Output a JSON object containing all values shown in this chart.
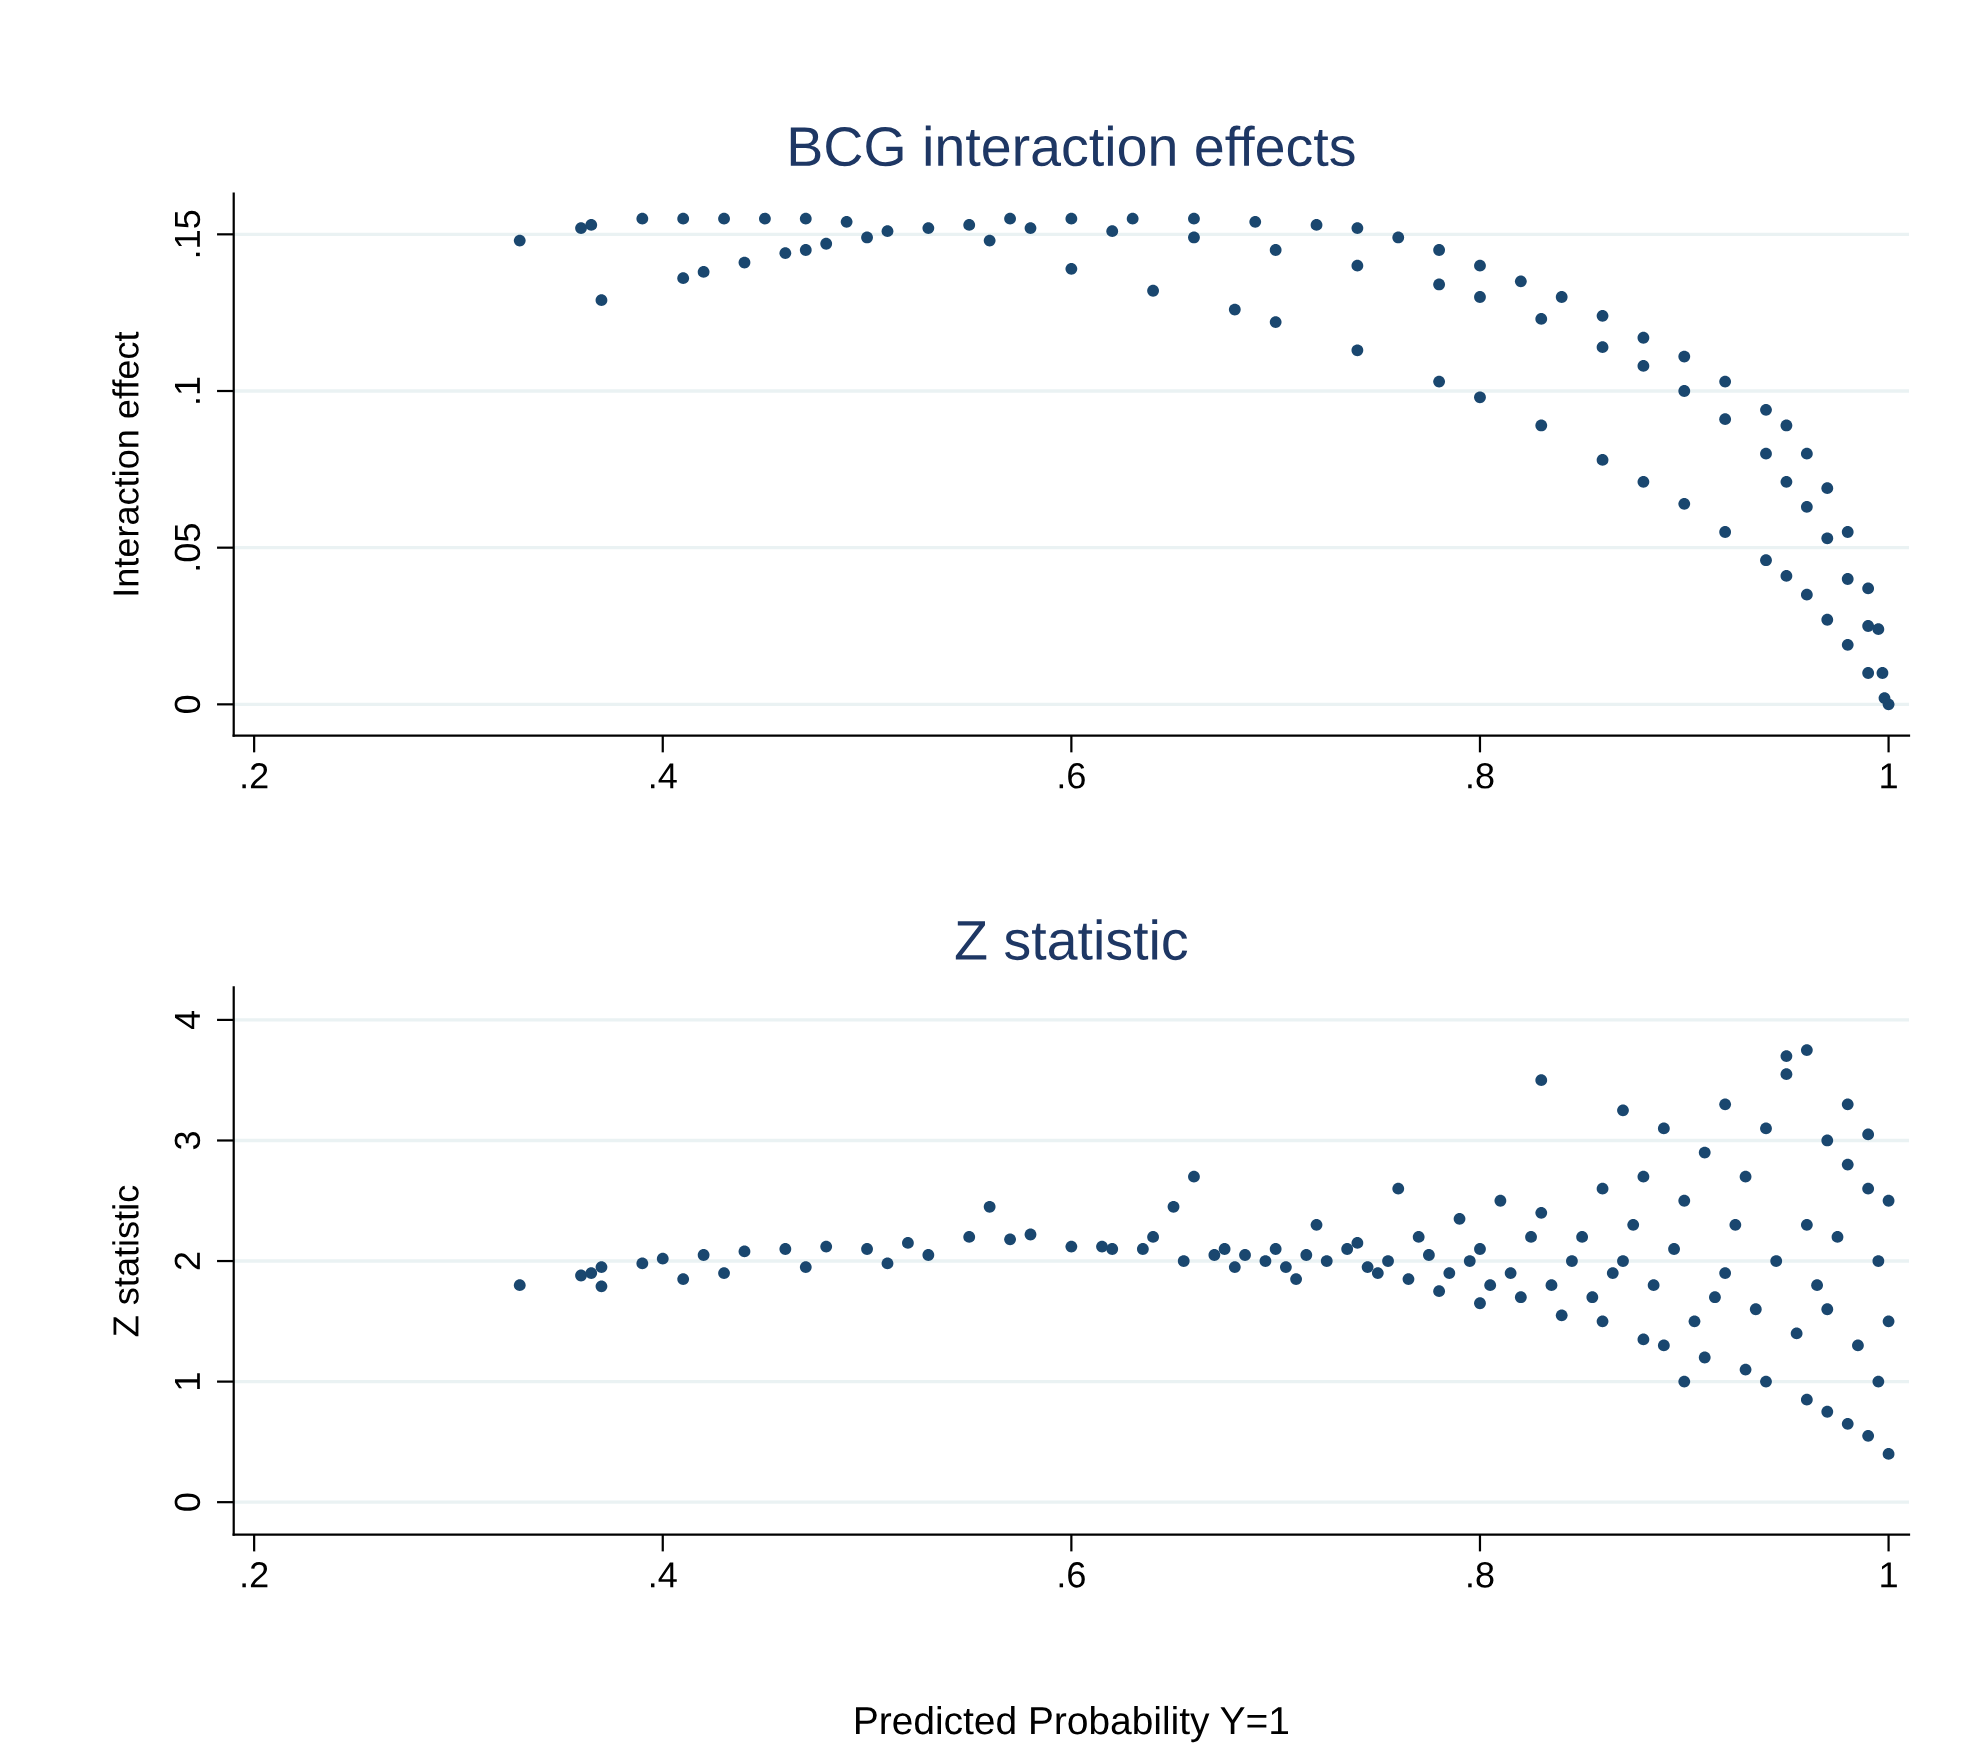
{
  "chart_data": [
    {
      "type": "scatter",
      "title": "BCG interaction effects",
      "ylabel": "Interaction effect",
      "series": [
        {
          "color": "#1a476f",
          "x": [
            0.33,
            0.36,
            0.365,
            0.37,
            0.39,
            0.41,
            0.43,
            0.45,
            0.47,
            0.49,
            0.41,
            0.42,
            0.44,
            0.46,
            0.47,
            0.48,
            0.5,
            0.51,
            0.53,
            0.55,
            0.57,
            0.6,
            0.63,
            0.66,
            0.69,
            0.72,
            0.74,
            0.76,
            0.78,
            0.8,
            0.82,
            0.84,
            0.86,
            0.88,
            0.9,
            0.92,
            0.94,
            0.95,
            0.96,
            0.97,
            0.98,
            0.99,
            0.995,
            1.0,
            0.58,
            0.62,
            0.66,
            0.7,
            0.74,
            0.78,
            0.8,
            0.83,
            0.86,
            0.88,
            0.9,
            0.92,
            0.94,
            0.95,
            0.96,
            0.97,
            0.98,
            0.99,
            0.997,
            0.56,
            0.6,
            0.64,
            0.68,
            0.7,
            0.74,
            0.78,
            0.8,
            0.83,
            0.86,
            0.88,
            0.9,
            0.92,
            0.94,
            0.95,
            0.96,
            0.97,
            0.98,
            0.99,
            0.998
          ],
          "values": [
            0.148,
            0.152,
            0.153,
            0.129,
            0.155,
            0.155,
            0.155,
            0.155,
            0.155,
            0.154,
            0.136,
            0.138,
            0.141,
            0.144,
            0.145,
            0.147,
            0.149,
            0.151,
            0.152,
            0.153,
            0.155,
            0.155,
            0.155,
            0.155,
            0.154,
            0.153,
            0.152,
            0.149,
            0.145,
            0.14,
            0.135,
            0.13,
            0.124,
            0.117,
            0.111,
            0.103,
            0.094,
            0.089,
            0.08,
            0.069,
            0.055,
            0.037,
            0.024,
            0.0,
            0.152,
            0.151,
            0.149,
            0.145,
            0.14,
            0.134,
            0.13,
            0.123,
            0.114,
            0.108,
            0.1,
            0.091,
            0.08,
            0.071,
            0.063,
            0.053,
            0.04,
            0.025,
            0.01,
            0.148,
            0.139,
            0.132,
            0.126,
            0.122,
            0.113,
            0.103,
            0.098,
            0.089,
            0.078,
            0.071,
            0.064,
            0.055,
            0.046,
            0.041,
            0.035,
            0.027,
            0.019,
            0.01,
            0.002
          ]
        }
      ],
      "xlim": [
        0.19,
        1.01
      ],
      "xticks": [
        {
          "value": 0.2,
          "label": ".2"
        },
        {
          "value": 0.4,
          "label": ".4"
        },
        {
          "value": 0.6,
          "label": ".6"
        },
        {
          "value": 0.8,
          "label": ".8"
        },
        1
      ],
      "ylim": [
        -0.01,
        0.163
      ],
      "yticks": [
        0,
        {
          "value": 0.05,
          "label": ".05"
        },
        {
          "value": 0.1,
          "label": ".1"
        },
        {
          "value": 0.15,
          "label": ".15"
        }
      ],
      "grid": "y",
      "marker": "circle"
    },
    {
      "type": "scatter",
      "title": "Z statistic",
      "ylabel": "Z statistic",
      "xlabel": "Predicted Probability Y=1",
      "series": [
        {
          "color": "#1a476f",
          "x": [
            0.33,
            0.36,
            0.365,
            0.37,
            0.37,
            0.39,
            0.4,
            0.41,
            0.42,
            0.43,
            0.44,
            0.46,
            0.47,
            0.48,
            0.5,
            0.51,
            0.52,
            0.53,
            0.55,
            0.56,
            0.57,
            0.58,
            0.6,
            0.62,
            0.64,
            0.65,
            0.66,
            0.67,
            0.68,
            0.7,
            0.71,
            0.72,
            0.74,
            0.75,
            0.76,
            0.77,
            0.78,
            0.79,
            0.8,
            0.8,
            0.81,
            0.82,
            0.83,
            0.83,
            0.84,
            0.85,
            0.86,
            0.86,
            0.87,
            0.87,
            0.88,
            0.88,
            0.89,
            0.89,
            0.9,
            0.9,
            0.91,
            0.91,
            0.92,
            0.92,
            0.93,
            0.93,
            0.94,
            0.94,
            0.95,
            0.95,
            0.96,
            0.96,
            0.96,
            0.97,
            0.97,
            0.97,
            0.98,
            0.98,
            0.98,
            0.99,
            0.99,
            0.99,
            1.0,
            1.0,
            1.0,
            0.995,
            0.995,
            0.985,
            0.975,
            0.965,
            0.955,
            0.945,
            0.935,
            0.925,
            0.915,
            0.905,
            0.895,
            0.885,
            0.875,
            0.865,
            0.855,
            0.845,
            0.835,
            0.825,
            0.815,
            0.805,
            0.795,
            0.785,
            0.775,
            0.765,
            0.755,
            0.745,
            0.735,
            0.725,
            0.715,
            0.705,
            0.695,
            0.685,
            0.675,
            0.655,
            0.635,
            0.615
          ],
          "values": [
            1.8,
            1.88,
            1.9,
            1.79,
            1.95,
            1.98,
            2.02,
            1.85,
            2.05,
            1.9,
            2.08,
            2.1,
            1.95,
            2.12,
            2.1,
            1.98,
            2.15,
            2.05,
            2.2,
            2.45,
            2.18,
            2.22,
            2.12,
            2.1,
            2.2,
            2.45,
            2.7,
            2.05,
            1.95,
            2.1,
            1.85,
            2.3,
            2.15,
            1.9,
            2.6,
            2.2,
            1.75,
            2.35,
            1.65,
            2.1,
            2.5,
            1.7,
            3.5,
            2.4,
            1.55,
            2.2,
            2.6,
            1.5,
            3.25,
            2.0,
            1.35,
            2.7,
            3.1,
            1.3,
            2.5,
            1.0,
            1.2,
            2.9,
            1.9,
            3.3,
            1.1,
            2.7,
            3.1,
            1.0,
            3.55,
            3.7,
            3.75,
            0.85,
            2.3,
            3.0,
            0.75,
            1.6,
            3.3,
            0.65,
            2.8,
            3.05,
            0.55,
            2.6,
            0.4,
            2.5,
            1.5,
            1.0,
            2.0,
            1.3,
            2.2,
            1.8,
            1.4,
            2.0,
            1.6,
            2.3,
            1.7,
            1.5,
            2.1,
            1.8,
            2.3,
            1.9,
            1.7,
            2.0,
            1.8,
            2.2,
            1.9,
            1.8,
            2.0,
            1.9,
            2.05,
            1.85,
            2.0,
            1.95,
            2.1,
            2.0,
            2.05,
            1.95,
            2.0,
            2.05,
            2.1,
            2.0,
            2.1,
            2.12
          ]
        }
      ],
      "xlim": [
        0.19,
        1.01
      ],
      "xticks": [
        {
          "value": 0.2,
          "label": ".2"
        },
        {
          "value": 0.4,
          "label": ".4"
        },
        {
          "value": 0.6,
          "label": ".6"
        },
        {
          "value": 0.8,
          "label": ".8"
        },
        1
      ],
      "ylim": [
        -0.27,
        4.27
      ],
      "yticks": [
        0,
        1,
        2,
        3,
        4
      ],
      "grid": "y",
      "marker": "circle"
    }
  ]
}
